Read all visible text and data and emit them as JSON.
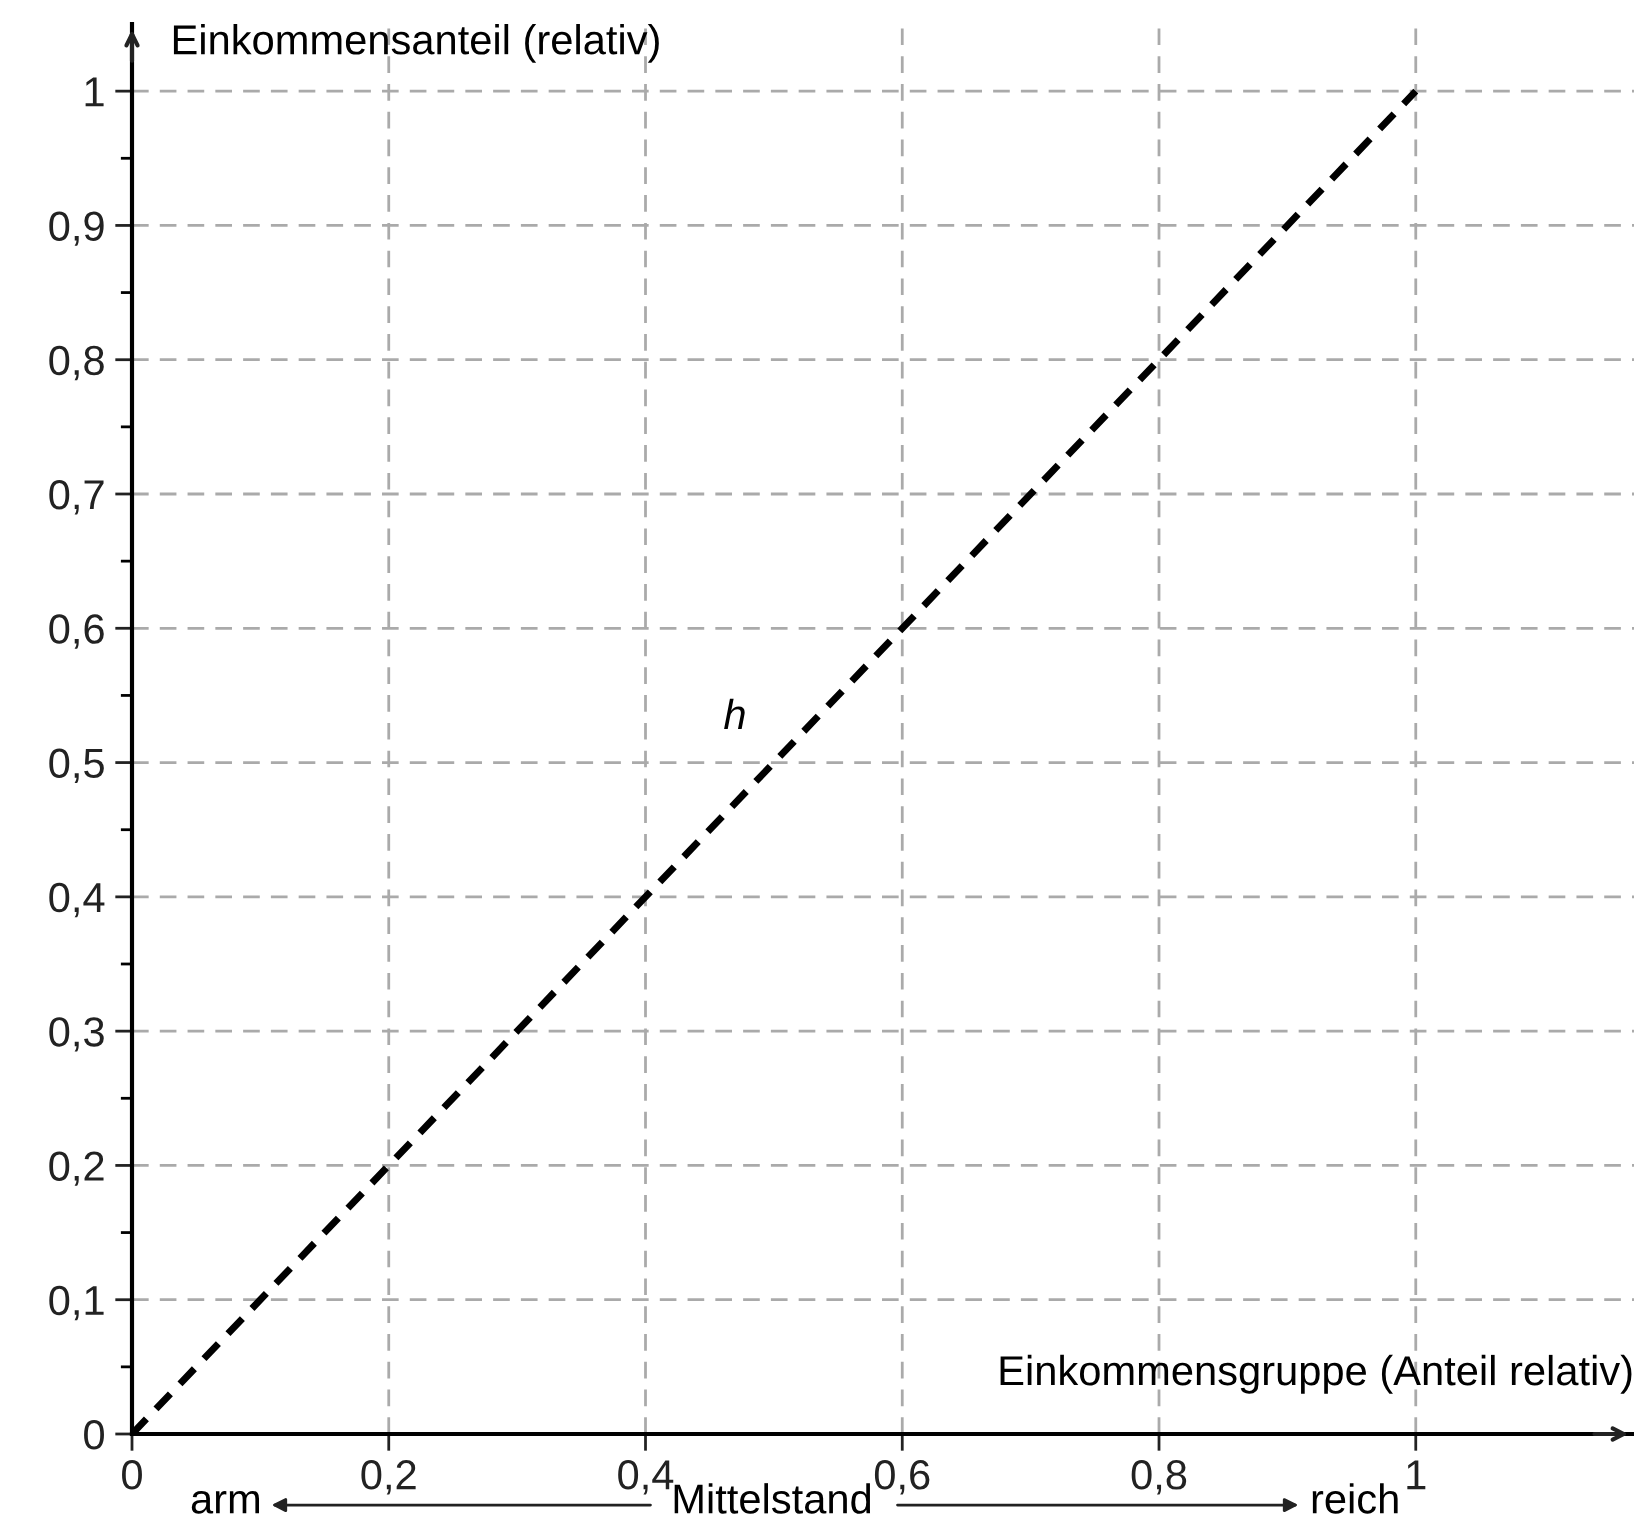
{
  "chart_data": {
    "type": "line",
    "xlabel": "Einkommensgruppe (Anteil relativ)",
    "ylabel": "Einkommensanteil (relativ)",
    "x": [
      0,
      1
    ],
    "series": [
      {
        "name": "h",
        "color": "#000000",
        "values": [
          0,
          1
        ]
      }
    ],
    "line_style": "dashed",
    "marker": "none",
    "grid": true,
    "legend": false,
    "xlim": [
      0,
      1.17
    ],
    "ylim": [
      0,
      1.05
    ],
    "xticks": [
      0,
      {
        "value": 0.2,
        "label": "0,2"
      },
      {
        "value": 0.4,
        "label": "0,4"
      },
      {
        "value": 0.6,
        "label": "0,6"
      },
      {
        "value": 0.8,
        "label": "0,8"
      },
      1
    ],
    "yticks": [
      0,
      {
        "value": 0.1,
        "label": "0,1"
      },
      {
        "value": 0.2,
        "label": "0,2"
      },
      {
        "value": 0.3,
        "label": "0,3"
      },
      {
        "value": 0.4,
        "label": "0,4"
      },
      {
        "value": 0.5,
        "label": "0,5"
      },
      {
        "value": 0.6,
        "label": "0,6"
      },
      {
        "value": 0.7,
        "label": "0,7"
      },
      {
        "value": 0.8,
        "label": "0,8"
      },
      {
        "value": 0.9,
        "label": "0,9"
      },
      1
    ],
    "annotations": [
      "arm",
      "Mittelstand",
      "reich"
    ]
  }
}
